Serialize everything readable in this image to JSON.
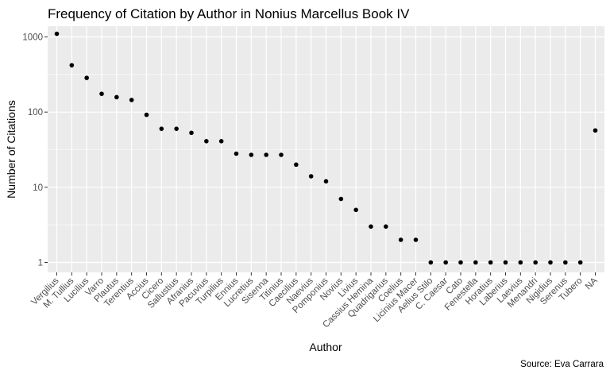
{
  "chart_data": {
    "type": "scatter",
    "title": "Frequency of Citation by Author in Nonius Marcellus Book IV",
    "xlabel": "Author",
    "ylabel": "Number of Citations",
    "caption": "Source: Eva Carrara",
    "y_scale": "log10",
    "ylim": [
      0.7,
      1450
    ],
    "y_ticks": [
      1,
      10,
      100,
      1000
    ],
    "y_tick_labels": [
      "1",
      "10",
      "100",
      "1000"
    ],
    "grid": true,
    "legend": "none",
    "point_color": "#000000",
    "panel_color": "#ebebeb",
    "grid_color": "#ffffff",
    "categories": [
      "Vergilius",
      "M. Tullius",
      "Lucilius",
      "Varro",
      "Plautus",
      "Terentius",
      "Accius",
      "Cicero",
      "Sallustius",
      "Afranius",
      "Pacuvius",
      "Turpilius",
      "Ennius",
      "Lucretius",
      "Sisenna",
      "Titinius",
      "Caecilius",
      "Naevius",
      "Pomponius",
      "Novius",
      "Livius",
      "Cassius Hemina",
      "Quadrigarius",
      "Coelius",
      "Licinius Macer",
      "Aelius Stilo",
      "C. Caesar",
      "Cato",
      "Fenestella",
      "Horatius",
      "Laberius",
      "Laevius",
      "Menandri",
      "Nigidius",
      "Serenus",
      "Tubero",
      "NA"
    ],
    "values": [
      1100,
      420,
      285,
      175,
      158,
      145,
      92,
      60,
      60,
      53,
      41,
      41,
      28,
      27,
      27,
      27,
      20,
      14,
      12,
      7,
      5,
      3,
      3,
      2,
      2,
      1,
      1,
      1,
      1,
      1,
      1,
      1,
      1,
      1,
      1,
      1,
      57
    ]
  }
}
